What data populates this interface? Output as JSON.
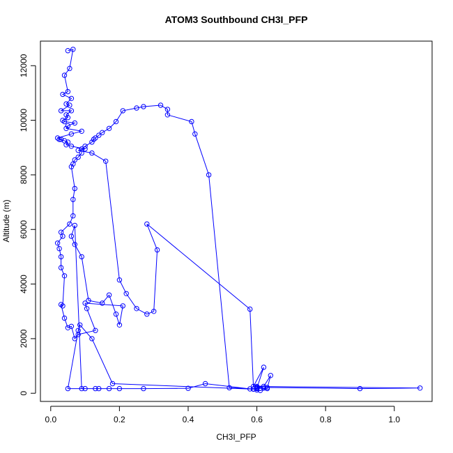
{
  "chart_data": {
    "type": "line",
    "title": "ATOM3 Southbound CH3I_PFP",
    "xlabel": "CH3I_PFP",
    "ylabel": "Altitude (m)",
    "xlim": [
      -0.03,
      1.11
    ],
    "ylim": [
      -300,
      12900
    ],
    "x_ticks": [
      0.0,
      0.2,
      0.4,
      0.6,
      0.8,
      1.0
    ],
    "x_tick_labels": [
      "0.0",
      "0.2",
      "0.4",
      "0.6",
      "0.8",
      "1.0"
    ],
    "y_ticks": [
      0,
      2000,
      4000,
      6000,
      8000,
      10000,
      12000
    ],
    "y_tick_labels": [
      "0",
      "2000",
      "4000",
      "6000",
      "8000",
      "10000",
      "12000"
    ],
    "grid": false,
    "legend": "none",
    "marker": "open-circle",
    "color": "#0000ff",
    "series": [
      {
        "x": [
          0.05,
          0.065,
          0.055,
          0.04,
          0.05,
          0.035,
          0.06,
          0.045,
          0.055,
          0.03,
          0.06,
          0.045,
          0.05,
          0.035,
          0.04,
          0.07,
          0.05,
          0.045,
          0.09,
          0.06,
          0.02,
          0.03,
          0.025,
          0.04,
          0.05,
          0.045,
          0.06,
          0.1,
          0.08,
          0.12,
          0.16,
          0.2,
          0.22,
          0.25,
          0.28,
          0.3,
          0.31,
          0.28,
          0.58,
          0.59,
          0.62,
          0.6,
          0.58,
          0.45,
          0.4,
          0.27,
          0.14,
          0.13,
          0.1,
          0.09,
          0.07,
          0.06,
          0.07,
          0.09,
          0.11,
          0.15,
          0.17,
          0.19,
          0.2,
          0.21,
          0.1,
          0.105,
          0.13,
          0.08,
          0.07,
          0.06,
          0.05,
          0.04,
          0.03,
          0.035,
          0.04,
          0.03,
          0.03,
          0.025,
          0.02,
          0.035,
          0.03,
          0.055,
          0.065,
          0.065,
          0.07,
          0.06,
          0.065,
          0.07,
          0.08,
          0.09,
          0.09,
          0.1,
          0.12,
          0.125,
          0.13,
          0.14,
          0.15,
          0.17,
          0.19,
          0.21,
          0.25,
          0.27,
          0.32,
          0.34,
          0.34,
          0.41,
          0.42,
          0.46,
          0.52,
          0.59,
          0.6,
          0.61,
          0.63,
          0.64,
          0.62,
          0.6,
          0.62,
          0.63,
          0.9,
          1.075,
          0.6,
          0.6,
          0.6,
          0.61,
          0.6,
          0.59,
          0.18,
          0.12,
          0.085,
          0.08,
          0.05,
          0.2,
          0.17
        ],
        "y": [
          12550,
          12600,
          11900,
          11650,
          11050,
          10950,
          10800,
          10600,
          10550,
          10350,
          10350,
          10200,
          10100,
          10000,
          9950,
          9900,
          9800,
          9700,
          9600,
          9500,
          9350,
          9300,
          9300,
          9250,
          9200,
          9100,
          9050,
          8950,
          8900,
          8800,
          8500,
          4150,
          3650,
          3100,
          2900,
          3000,
          5250,
          6200,
          3080,
          250,
          950,
          180,
          160,
          350,
          180,
          170,
          170,
          170,
          170,
          170,
          6150,
          5750,
          5450,
          5000,
          3400,
          3300,
          3600,
          2900,
          2500,
          3200,
          3300,
          3100,
          2300,
          2150,
          2000,
          2450,
          2400,
          2750,
          3250,
          3200,
          4300,
          4600,
          5000,
          5300,
          5500,
          5750,
          5900,
          6200,
          6500,
          7100,
          7500,
          8300,
          8400,
          8550,
          8650,
          8800,
          8950,
          9050,
          9200,
          9300,
          9350,
          9450,
          9550,
          9700,
          9950,
          10350,
          10450,
          10500,
          10550,
          10400,
          10200,
          9950,
          9500,
          8000,
          200,
          160,
          120,
          100,
          170,
          650,
          250,
          200,
          190,
          210,
          170,
          190,
          250,
          210,
          210,
          180,
          170,
          150,
          350,
          2000,
          2500,
          2300,
          170,
          170,
          170
        ]
      }
    ]
  }
}
